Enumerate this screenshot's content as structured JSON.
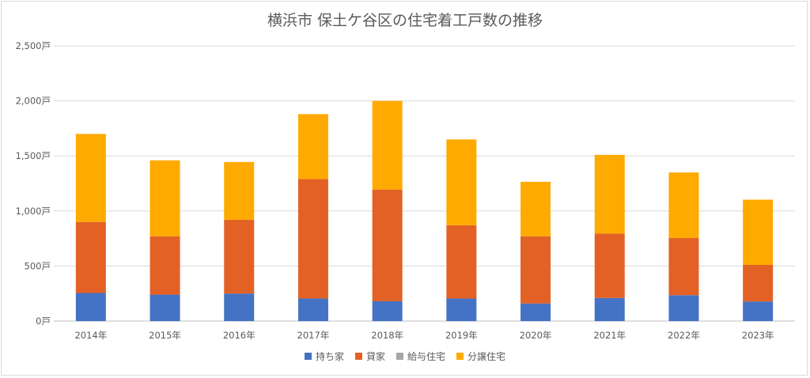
{
  "chart_data": {
    "type": "bar",
    "stacked": true,
    "title": "横浜市 保土ケ谷区の住宅着工戸数の推移",
    "categories": [
      "2014年",
      "2015年",
      "2016年",
      "2017年",
      "2018年",
      "2019年",
      "2020年",
      "2021年",
      "2022年",
      "2023年"
    ],
    "ylim": [
      0,
      2500
    ],
    "yticks": [
      {
        "value": 0,
        "label": "0戸"
      },
      {
        "value": 500,
        "label": "500戸"
      },
      {
        "value": 1000,
        "label": "1,000戸"
      },
      {
        "value": 1500,
        "label": "1,500戸"
      },
      {
        "value": 2000,
        "label": "2,000戸"
      },
      {
        "value": 2500,
        "label": "2,500戸"
      }
    ],
    "grid": true,
    "legend_position": "bottom",
    "series": [
      {
        "name": "持ち家",
        "color": "#4472c4",
        "values": [
          255,
          240,
          250,
          205,
          180,
          205,
          160,
          210,
          235,
          178
        ]
      },
      {
        "name": "貸家",
        "color": "#e36125",
        "values": [
          645,
          530,
          670,
          1085,
          1015,
          665,
          610,
          585,
          520,
          332
        ]
      },
      {
        "name": "給与住宅",
        "color": "#a5a5a5",
        "values": [
          0,
          0,
          0,
          0,
          0,
          0,
          0,
          0,
          0,
          0
        ]
      },
      {
        "name": "分譲住宅",
        "color": "#ffaa00",
        "values": [
          800,
          690,
          525,
          590,
          805,
          780,
          495,
          715,
          595,
          593
        ]
      }
    ]
  }
}
